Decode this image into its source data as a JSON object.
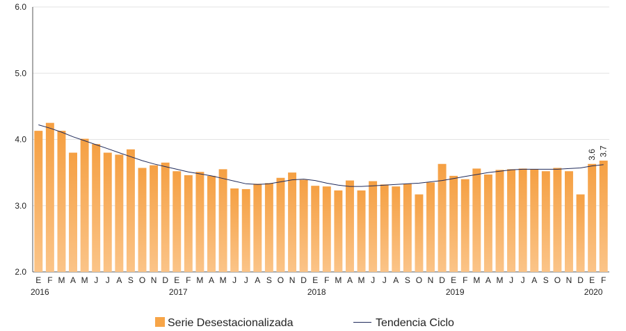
{
  "chart_data": {
    "type": "bar",
    "categories": [
      "E",
      "F",
      "M",
      "A",
      "M",
      "J",
      "J",
      "A",
      "S",
      "O",
      "N",
      "D",
      "E",
      "F",
      "M",
      "A",
      "M",
      "J",
      "J",
      "A",
      "S",
      "O",
      "N",
      "D",
      "E",
      "F",
      "M",
      "A",
      "M",
      "J",
      "J",
      "A",
      "S",
      "O",
      "N",
      "D",
      "E",
      "F",
      "M",
      "A",
      "M",
      "J",
      "J",
      "A",
      "S",
      "O",
      "N",
      "D",
      "E",
      "F"
    ],
    "years": [
      {
        "label": "2016",
        "index": 0
      },
      {
        "label": "2017",
        "index": 12
      },
      {
        "label": "2018",
        "index": 24
      },
      {
        "label": "2019",
        "index": 36
      },
      {
        "label": "2020",
        "index": 48
      }
    ],
    "series": [
      {
        "name": "Serie Desestacionalizada",
        "kind": "bar",
        "color": "#f7a548",
        "values": [
          4.13,
          4.25,
          4.13,
          3.8,
          4.01,
          3.93,
          3.8,
          3.77,
          3.85,
          3.57,
          3.61,
          3.65,
          3.52,
          3.46,
          3.51,
          3.45,
          3.55,
          3.26,
          3.25,
          3.33,
          3.34,
          3.42,
          3.5,
          3.39,
          3.3,
          3.29,
          3.23,
          3.38,
          3.23,
          3.37,
          3.32,
          3.29,
          3.33,
          3.17,
          3.35,
          3.63,
          3.45,
          3.4,
          3.56,
          3.47,
          3.54,
          3.55,
          3.56,
          3.55,
          3.52,
          3.57,
          3.52,
          3.17,
          3.63,
          3.68
        ]
      },
      {
        "name": "Tendencia Ciclo",
        "kind": "line",
        "color": "#1f2a5a",
        "values": [
          4.22,
          4.17,
          4.11,
          4.04,
          3.98,
          3.92,
          3.86,
          3.8,
          3.74,
          3.68,
          3.63,
          3.59,
          3.55,
          3.51,
          3.48,
          3.45,
          3.41,
          3.37,
          3.33,
          3.32,
          3.33,
          3.36,
          3.39,
          3.4,
          3.38,
          3.34,
          3.31,
          3.29,
          3.29,
          3.3,
          3.31,
          3.32,
          3.33,
          3.34,
          3.36,
          3.38,
          3.41,
          3.44,
          3.47,
          3.5,
          3.52,
          3.54,
          3.55,
          3.55,
          3.55,
          3.55,
          3.56,
          3.57,
          3.6,
          3.62
        ]
      }
    ],
    "data_labels": [
      {
        "index": 48,
        "text": "3.6"
      },
      {
        "index": 49,
        "text": "3.7"
      }
    ],
    "yticks": [
      "2.0",
      "3.0",
      "4.0",
      "5.0",
      "6.0"
    ],
    "ylim": [
      2.0,
      6.0
    ],
    "grid": true,
    "legend_position": "bottom",
    "title": "",
    "xlabel": "",
    "ylabel": ""
  }
}
